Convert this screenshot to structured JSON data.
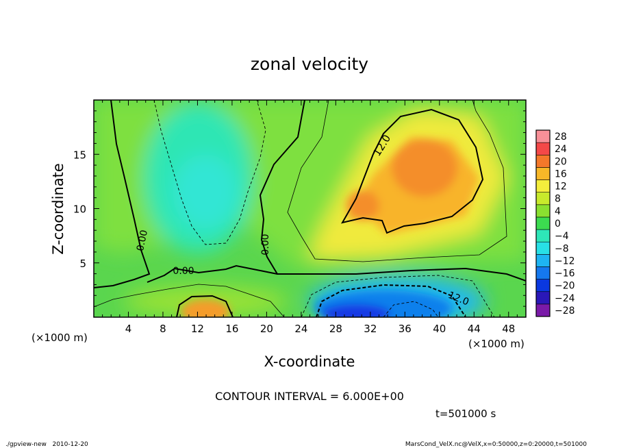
{
  "chart_data": {
    "type": "heatmap",
    "title": "zonal velocity",
    "xlabel": "X-coordinate",
    "ylabel": "Z-coordinate",
    "x_unit_label": "(×1000 m)",
    "x_unit_label_right": "(×1000 m)",
    "xlim": [
      0,
      50
    ],
    "ylim": [
      0,
      20
    ],
    "x_ticks": [
      4,
      8,
      12,
      16,
      20,
      24,
      28,
      32,
      36,
      40,
      44,
      48
    ],
    "y_ticks": [
      5,
      10,
      15
    ],
    "colorbar": {
      "levels": [
        -28,
        -24,
        -20,
        -16,
        -12,
        -8,
        -4,
        0,
        4,
        8,
        12,
        16,
        20,
        24,
        28
      ],
      "colors": [
        "#7a1aa8",
        "#2a18b8",
        "#0a38e0",
        "#1578ee",
        "#1eb4f2",
        "#28e0e6",
        "#2ee6b8",
        "#3cdc50",
        "#8ae030",
        "#c8ea2c",
        "#f4ee3c",
        "#f8b828",
        "#f4782a",
        "#f44848",
        "#f89098"
      ]
    },
    "contour_labels": [
      "0.00",
      "0.00",
      "0.00",
      "12.0",
      "12.0"
    ],
    "contour_interval": "CONTOUR INTERVAL = 6.000E+00",
    "time_label": "t=501000 s",
    "footer_left": "./gpview-new   2010-12-20",
    "footer_right": "MarsCond_VelX.nc@VelX,x=0:50000,z=0:20000,t=501000"
  }
}
